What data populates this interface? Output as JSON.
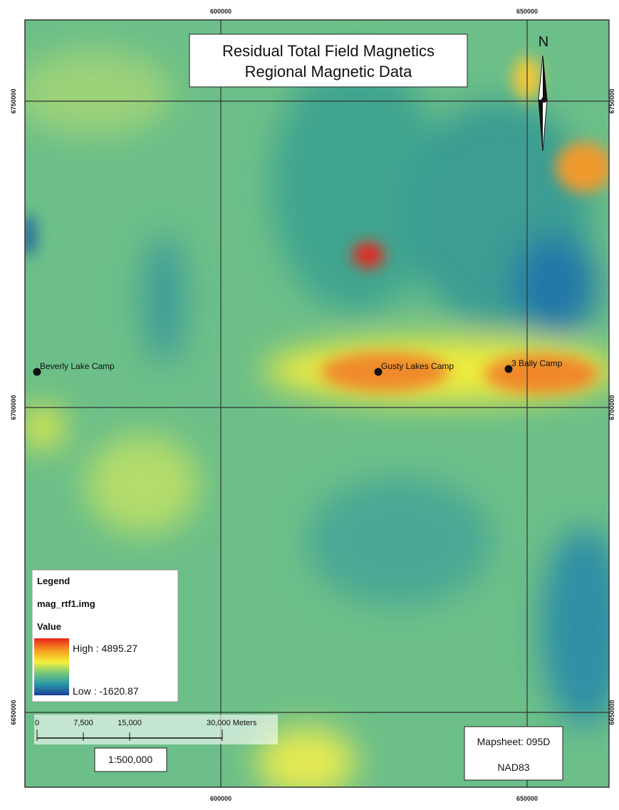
{
  "map": {
    "title": [
      "Residual Total Field Magnetics",
      "Regional Magnetic Data"
    ],
    "north": "N",
    "coords": {
      "top": [
        "600000",
        "650000"
      ],
      "bottom": [
        "600000",
        "650000"
      ],
      "left": [
        "6750000",
        "6700000",
        "6650000"
      ],
      "right": [
        "6750000",
        "6700000",
        "6650000"
      ]
    },
    "places": [
      "Beverly Lake Camp",
      "Gusty Lakes Camp",
      "3 Bally Camp"
    ],
    "legend": {
      "heading": "Legend",
      "layer": "mag_rtf1.img",
      "field": "Value",
      "high": "High : 4895.27",
      "low": "Low : -1620.87"
    },
    "scale_bar": {
      "labels": [
        "0",
        "7,500",
        "15,000",
        "30,000 Meters"
      ],
      "ratio": "1:500,000"
    },
    "info": {
      "mapsheet": "Mapsheet: 095D",
      "datum": "NAD83"
    }
  }
}
